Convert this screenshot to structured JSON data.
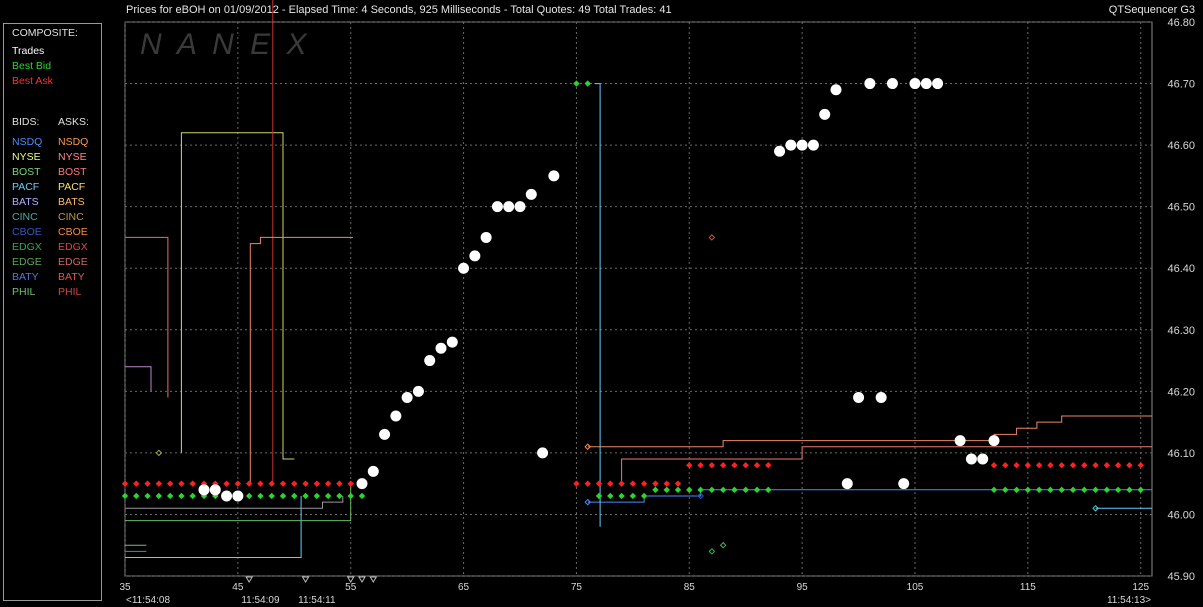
{
  "header": {
    "title": "Prices for  eBOH  on  01/09/2012  -  Elapsed Time: 4 Seconds, 925 Milliseconds  -  Total Quotes: 49  Total Trades: 41",
    "app_name": "QTSequencer G3",
    "watermark": "N A N E X"
  },
  "legend": {
    "composite_title": "COMPOSITE:",
    "composite": [
      {
        "label": "Trades",
        "color": "#ffffff"
      },
      {
        "label": "Best Bid",
        "color": "#2dd42d"
      },
      {
        "label": "Best Ask",
        "color": "#ff3030"
      }
    ],
    "bids_title": "BIDS:",
    "asks_title": "ASKS:",
    "exchanges": [
      {
        "bid": "NSDQ",
        "ask": "NSDQ",
        "bid_color": "#4a8cff",
        "ask_color": "#ff9a50"
      },
      {
        "bid": "NYSE",
        "ask": "NYSE",
        "bid_color": "#e8ff8a",
        "ask_color": "#ff8888"
      },
      {
        "bid": "BOST",
        "ask": "BOST",
        "bid_color": "#7cd67c",
        "ask_color": "#ff7a7a"
      },
      {
        "bid": "PACF",
        "ask": "PACF",
        "bid_color": "#66ccff",
        "ask_color": "#ffe066"
      },
      {
        "bid": "BATS",
        "ask": "BATS",
        "bid_color": "#b0b0ff",
        "ask_color": "#ffbb66"
      },
      {
        "bid": "CINC",
        "ask": "CINC",
        "bid_color": "#44aaaa",
        "ask_color": "#bb9944"
      },
      {
        "bid": "CBOE",
        "ask": "CBOE",
        "bid_color": "#3355cc",
        "ask_color": "#ff8844"
      },
      {
        "bid": "EDGX",
        "ask": "EDGX",
        "bid_color": "#33aa55",
        "ask_color": "#dd4444"
      },
      {
        "bid": "EDGE",
        "ask": "EDGE",
        "bid_color": "#55aa55",
        "ask_color": "#cc6666"
      },
      {
        "bid": "BATY",
        "ask": "BATY",
        "bid_color": "#5577dd",
        "ask_color": "#dd5555"
      },
      {
        "bid": "PHIL",
        "ask": "PHIL",
        "bid_color": "#77bb77",
        "ask_color": "#cc4444"
      }
    ]
  },
  "chart_data": {
    "type": "scatter",
    "xlim": [
      35,
      126
    ],
    "ylim": [
      45.9,
      46.8
    ],
    "x_ticks": [
      35,
      45,
      55,
      65,
      75,
      85,
      95,
      105,
      115,
      125
    ],
    "y_ticks": [
      "45.90",
      "46.00",
      "46.10",
      "46.20",
      "46.30",
      "46.40",
      "46.50",
      "46.60",
      "46.70",
      "46.80"
    ],
    "time_labels": [
      {
        "x": 37,
        "label": "<11:54:08"
      },
      {
        "x": 47,
        "label": "11:54:09"
      },
      {
        "x": 52,
        "label": "11:54:11"
      },
      {
        "x": 124,
        "label": "11:54:13>"
      }
    ],
    "grid": true,
    "trades": [
      [
        42,
        46.04
      ],
      [
        43,
        46.04
      ],
      [
        44,
        46.03
      ],
      [
        45,
        46.03
      ],
      [
        56,
        46.05
      ],
      [
        57,
        46.07
      ],
      [
        58,
        46.13
      ],
      [
        59,
        46.16
      ],
      [
        60,
        46.19
      ],
      [
        61,
        46.2
      ],
      [
        62,
        46.25
      ],
      [
        63,
        46.27
      ],
      [
        64,
        46.28
      ],
      [
        65,
        46.4
      ],
      [
        66,
        46.42
      ],
      [
        67,
        46.45
      ],
      [
        68,
        46.5
      ],
      [
        69,
        46.5
      ],
      [
        70,
        46.5
      ],
      [
        71,
        46.52
      ],
      [
        72,
        46.1
      ],
      [
        73,
        46.55
      ],
      [
        93,
        46.59
      ],
      [
        94,
        46.6
      ],
      [
        95,
        46.6
      ],
      [
        96,
        46.6
      ],
      [
        97,
        46.65
      ],
      [
        98,
        46.69
      ],
      [
        99,
        46.05
      ],
      [
        100,
        46.19
      ],
      [
        101,
        46.7
      ],
      [
        102,
        46.19
      ],
      [
        103,
        46.7
      ],
      [
        104,
        46.05
      ],
      [
        105,
        46.7
      ],
      [
        106,
        46.7
      ],
      [
        107,
        46.7
      ],
      [
        109,
        46.12
      ],
      [
        110,
        46.09
      ],
      [
        111,
        46.09
      ],
      [
        112,
        46.12
      ]
    ],
    "best_bid": [
      [
        35,
        46.03
      ],
      [
        36,
        46.03
      ],
      [
        37,
        46.03
      ],
      [
        38,
        46.03
      ],
      [
        39,
        46.03
      ],
      [
        40,
        46.03
      ],
      [
        41,
        46.03
      ],
      [
        42,
        46.03
      ],
      [
        43,
        46.03
      ],
      [
        44,
        46.03
      ],
      [
        45,
        46.03
      ],
      [
        46,
        46.03
      ],
      [
        47,
        46.03
      ],
      [
        48,
        46.03
      ],
      [
        49,
        46.03
      ],
      [
        50,
        46.03
      ],
      [
        51,
        46.03
      ],
      [
        52,
        46.03
      ],
      [
        53,
        46.03
      ],
      [
        54,
        46.03
      ],
      [
        55,
        46.03
      ],
      [
        56,
        46.03
      ],
      [
        75,
        46.7
      ],
      [
        76,
        46.7
      ],
      [
        77,
        46.03
      ],
      [
        78,
        46.03
      ],
      [
        79,
        46.03
      ],
      [
        80,
        46.03
      ],
      [
        81,
        46.03
      ],
      [
        82,
        46.04
      ],
      [
        83,
        46.04
      ],
      [
        84,
        46.04
      ],
      [
        85,
        46.04
      ],
      [
        86,
        46.04
      ],
      [
        87,
        46.04
      ],
      [
        88,
        46.04
      ],
      [
        89,
        46.04
      ],
      [
        90,
        46.04
      ],
      [
        91,
        46.04
      ],
      [
        92,
        46.04
      ],
      [
        112,
        46.04
      ],
      [
        113,
        46.04
      ],
      [
        114,
        46.04
      ],
      [
        115,
        46.04
      ],
      [
        116,
        46.04
      ],
      [
        117,
        46.04
      ],
      [
        118,
        46.04
      ],
      [
        119,
        46.04
      ],
      [
        120,
        46.04
      ],
      [
        121,
        46.04
      ],
      [
        122,
        46.04
      ],
      [
        123,
        46.04
      ],
      [
        124,
        46.04
      ],
      [
        125,
        46.04
      ]
    ],
    "best_ask": [
      [
        35,
        46.05
      ],
      [
        36,
        46.05
      ],
      [
        37,
        46.05
      ],
      [
        38,
        46.05
      ],
      [
        39,
        46.05
      ],
      [
        40,
        46.05
      ],
      [
        41,
        46.05
      ],
      [
        42,
        46.05
      ],
      [
        43,
        46.05
      ],
      [
        44,
        46.05
      ],
      [
        45,
        46.05
      ],
      [
        46,
        46.05
      ],
      [
        47,
        46.05
      ],
      [
        48,
        46.05
      ],
      [
        49,
        46.05
      ],
      [
        50,
        46.05
      ],
      [
        51,
        46.05
      ],
      [
        52,
        46.05
      ],
      [
        53,
        46.05
      ],
      [
        54,
        46.05
      ],
      [
        55,
        46.05
      ],
      [
        56,
        46.05
      ],
      [
        75,
        46.05
      ],
      [
        76,
        46.05
      ],
      [
        77,
        46.05
      ],
      [
        78,
        46.05
      ],
      [
        79,
        46.05
      ],
      [
        80,
        46.05
      ],
      [
        81,
        46.05
      ],
      [
        82,
        46.05
      ],
      [
        83,
        46.05
      ],
      [
        84,
        46.05
      ],
      [
        85,
        46.08
      ],
      [
        86,
        46.08
      ],
      [
        87,
        46.08
      ],
      [
        88,
        46.08
      ],
      [
        89,
        46.08
      ],
      [
        90,
        46.08
      ],
      [
        91,
        46.08
      ],
      [
        92,
        46.08
      ],
      [
        112,
        46.08
      ],
      [
        113,
        46.08
      ],
      [
        114,
        46.08
      ],
      [
        115,
        46.08
      ],
      [
        116,
        46.08
      ],
      [
        117,
        46.08
      ],
      [
        118,
        46.08
      ],
      [
        119,
        46.08
      ],
      [
        120,
        46.08
      ],
      [
        121,
        46.08
      ],
      [
        122,
        46.08
      ],
      [
        123,
        46.08
      ],
      [
        124,
        46.08
      ],
      [
        125,
        46.08
      ]
    ],
    "exchange_lines": [
      {
        "exchange": "NYSE ask",
        "color": "#d4d46a",
        "points": [
          [
            40,
            46.1
          ],
          [
            40,
            46.62
          ],
          [
            49,
            46.62
          ],
          [
            49,
            46.09
          ],
          [
            50,
            46.09
          ]
        ]
      },
      {
        "exchange": "BOST ask",
        "color": "#e07070",
        "points": [
          [
            35,
            46.45
          ],
          [
            38.8,
            46.45
          ],
          [
            38.8,
            46.19
          ]
        ]
      },
      {
        "exchange": "EDGX ask",
        "color": "#cc3333",
        "points": [
          [
            48.1,
            46.85
          ],
          [
            48.1,
            46.05
          ]
        ]
      },
      {
        "exchange": "NSDQ ask",
        "color": "#ee8866",
        "points": [
          [
            46.1,
            46.05
          ],
          [
            46.1,
            46.44
          ],
          [
            47,
            46.44
          ],
          [
            47,
            46.45
          ],
          [
            55.2,
            46.45
          ]
        ]
      },
      {
        "exchange": "NSDQ ask 2",
        "color": "#ee8866",
        "points": [
          [
            76,
            46.11
          ],
          [
            88,
            46.11
          ],
          [
            88,
            46.12
          ],
          [
            112,
            46.12
          ],
          [
            112,
            46.13
          ],
          [
            114,
            46.13
          ],
          [
            114,
            46.14
          ],
          [
            115.8,
            46.14
          ],
          [
            115.8,
            46.15
          ],
          [
            118,
            46.15
          ],
          [
            118,
            46.16
          ],
          [
            126,
            46.16
          ]
        ]
      },
      {
        "exchange": "BOST ask 2",
        "color": "#ee7777",
        "points": [
          [
            79,
            46.05
          ],
          [
            79,
            46.09
          ],
          [
            95,
            46.09
          ],
          [
            95,
            46.11
          ],
          [
            126,
            46.11
          ]
        ]
      },
      {
        "exchange": "PACF bid",
        "color": "#66ccff",
        "points": [
          [
            35,
            45.93
          ],
          [
            50.6,
            45.93
          ],
          [
            50.6,
            46.03
          ]
        ]
      },
      {
        "exchange": "NSDQ bid",
        "color": "#4a8cff",
        "points": [
          [
            76,
            46.02
          ],
          [
            81,
            46.02
          ],
          [
            81,
            46.03
          ],
          [
            86,
            46.03
          ],
          [
            86,
            46.04
          ],
          [
            126,
            46.04
          ]
        ]
      },
      {
        "exchange": "PACF bid 2",
        "color": "#66ccff",
        "points": [
          [
            76.6,
            46.7
          ],
          [
            77.1,
            46.7
          ],
          [
            77.1,
            45.98
          ]
        ]
      },
      {
        "exchange": "BOST bid",
        "color": "#66bb66",
        "points": [
          [
            35,
            45.99
          ],
          [
            55,
            45.99
          ],
          [
            55,
            46.05
          ]
        ]
      },
      {
        "exchange": "EDGE bid",
        "color": "#999999",
        "points": [
          [
            35,
            46.01
          ],
          [
            52.5,
            46.01
          ],
          [
            52.5,
            46.02
          ],
          [
            54.3,
            46.02
          ],
          [
            54.3,
            46.03
          ]
        ]
      },
      {
        "exchange": "PACF bid 3",
        "color": "#66ccff",
        "points": [
          [
            121,
            46.01
          ],
          [
            126,
            46.01
          ]
        ]
      },
      {
        "exchange": "BATS ask",
        "color": "#bb88cc",
        "points": [
          [
            35,
            46.24
          ],
          [
            37.3,
            46.24
          ],
          [
            37.3,
            46.2
          ]
        ]
      },
      {
        "exchange": "CBOE bid",
        "color": "#33aa55",
        "points": [
          [
            35,
            45.94
          ],
          [
            36.9,
            45.94
          ]
        ]
      },
      {
        "exchange": "PHIL bid",
        "color": "#77bb77",
        "points": [
          [
            35,
            45.95
          ],
          [
            36.9,
            45.95
          ]
        ]
      }
    ],
    "exchange_markers": [
      {
        "x": 38,
        "y": 46.1,
        "color": "#99aa44"
      },
      {
        "x": 76,
        "y": 46.11,
        "color": "#ff8844"
      },
      {
        "x": 76,
        "y": 46.02,
        "color": "#4a8cff"
      },
      {
        "x": 87,
        "y": 46.45,
        "color": "#cc5544"
      },
      {
        "x": 86,
        "y": 46.03,
        "color": "#3355cc"
      },
      {
        "x": 87,
        "y": 45.94,
        "color": "#33aa55"
      },
      {
        "x": 88,
        "y": 45.95,
        "color": "#55aa55"
      },
      {
        "x": 121,
        "y": 46.01,
        "color": "#55cccc"
      }
    ],
    "bottom_markers": [
      46,
      51,
      55,
      56,
      57
    ]
  }
}
